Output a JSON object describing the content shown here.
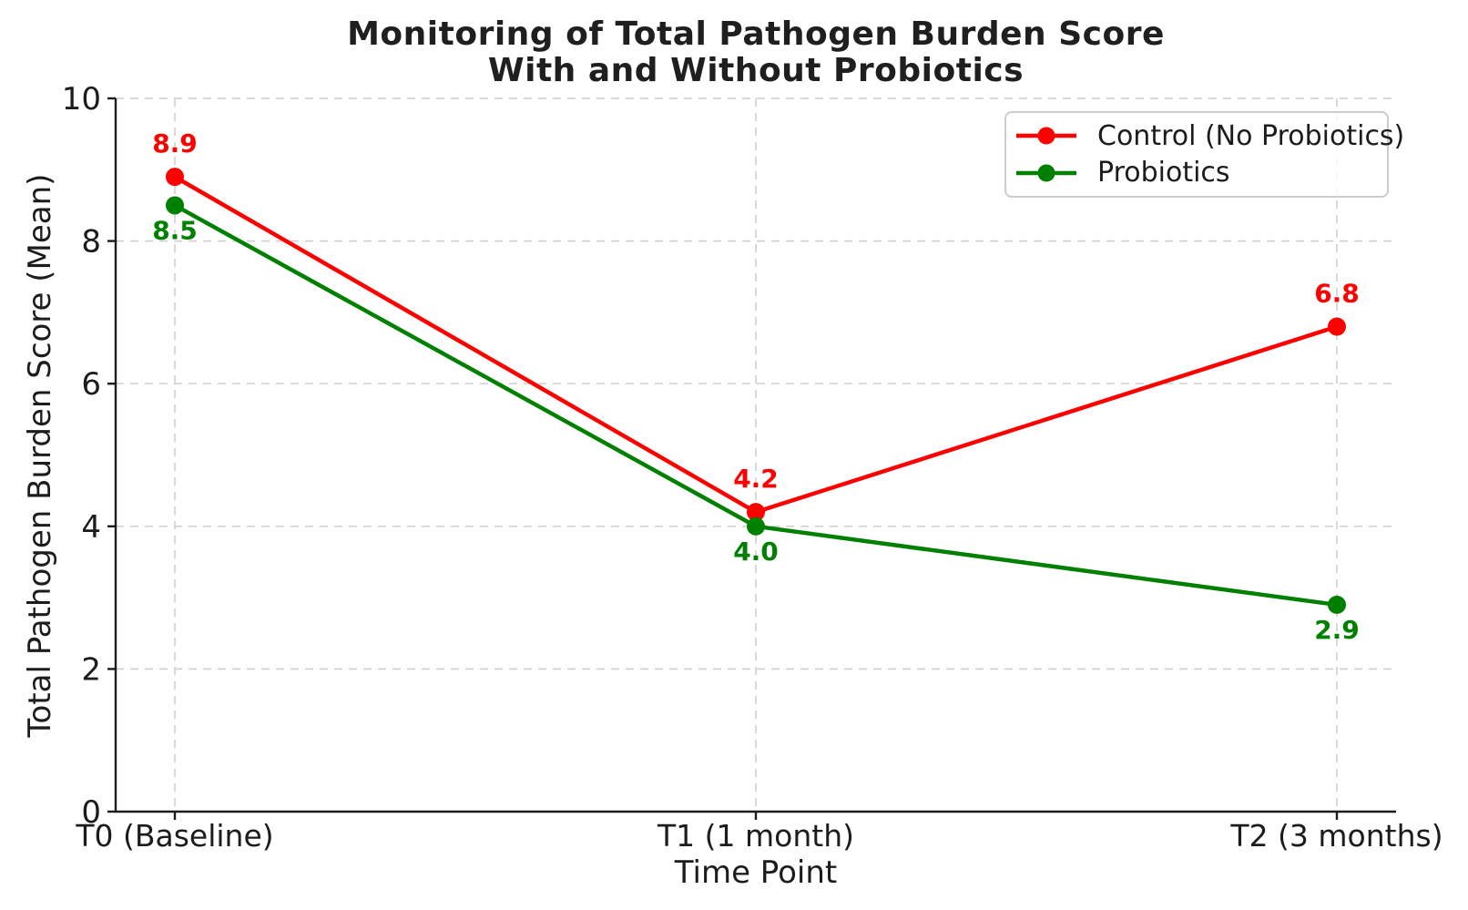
{
  "chart_data": {
    "type": "line",
    "title_line1": "Monitoring of Total Pathogen Burden Score",
    "title_line2": "With and Without Probiotics",
    "xlabel": "Time Point",
    "ylabel": "Total Pathogen Burden Score (Mean)",
    "categories": [
      "T0 (Baseline)",
      "T1 (1 month)",
      "T2 (3 months)"
    ],
    "series": [
      {
        "name": "Control (No Probiotics)",
        "color": "#ff0000",
        "values": [
          8.9,
          4.2,
          6.8
        ],
        "data_label_position": "above"
      },
      {
        "name": "Probiotics",
        "color": "#008000",
        "values": [
          8.5,
          4.0,
          2.9
        ],
        "data_label_position": "below"
      }
    ],
    "ylim": [
      0,
      10
    ],
    "yticks": [
      0,
      2,
      4,
      6,
      8,
      10
    ],
    "grid": true,
    "legend_position": "upper right"
  },
  "colors": {
    "background": "#ffffff",
    "grid": "#d2d2d2",
    "spine": "#1c1c1c",
    "tick_text": "#1c1c1c",
    "title_text": "#1f1f1f",
    "control_red": "#ff0000",
    "probiotics_green": "#008000"
  }
}
